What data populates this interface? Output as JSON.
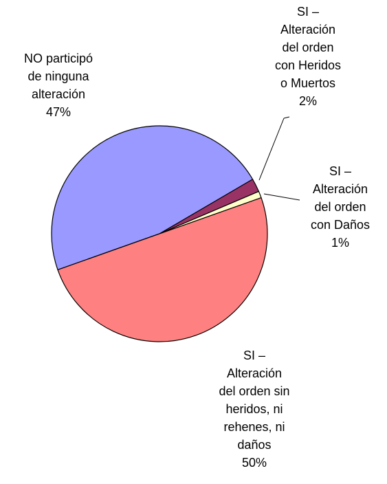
{
  "chart_data": {
    "type": "pie",
    "categories": [
      "NO participó\nde ninguna\nalteración",
      "SI –\nAlteración\ndel orden\ncon Heridos\no Muertos",
      "SI –\nAlteración\ndel orden\ncon Daños",
      "SI –\nAlteración\ndel orden sin\nheridos, ni\nrehenes, ni\ndaños"
    ],
    "values": [
      47,
      2,
      1,
      50
    ],
    "value_labels": [
      "47%",
      "2%",
      "1%",
      "50%"
    ],
    "colors": [
      "#9999ff",
      "#993366",
      "#ffffcc",
      "#ff8080"
    ]
  }
}
